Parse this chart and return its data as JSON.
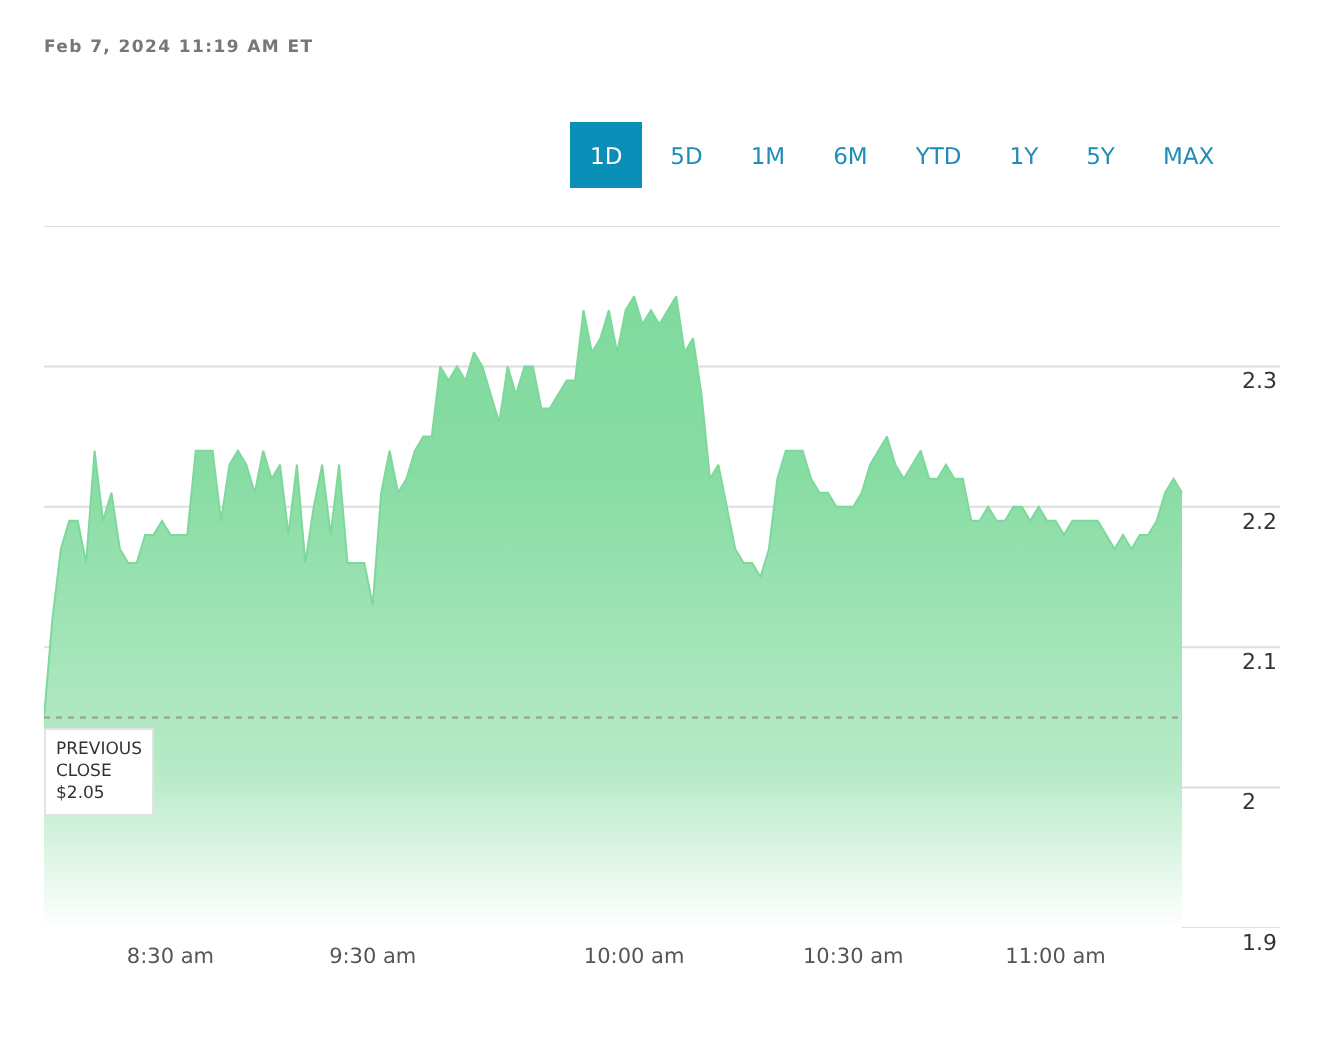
{
  "chart_data": {
    "type": "area",
    "title": "Feb 7, 2024 11:19 AM ET",
    "annotations": [
      "1D",
      "5D",
      "1M",
      "6M",
      "YTD",
      "1Y",
      "5Y",
      "MAX"
    ],
    "categories": [
      null,
      null,
      null,
      null,
      null,
      null,
      null,
      null,
      null,
      null,
      null,
      null,
      null,
      null,
      null,
      "8:30 am",
      null,
      null,
      null,
      null,
      null,
      null,
      null,
      null,
      null,
      null,
      null,
      null,
      null,
      null,
      null,
      null,
      null,
      null,
      null,
      null,
      null,
      null,
      null,
      "9:30 am",
      null,
      null,
      null,
      null,
      null,
      null,
      null,
      null,
      null,
      null,
      null,
      null,
      null,
      null,
      null,
      null,
      null,
      null,
      null,
      null,
      null,
      null,
      null,
      null,
      null,
      null,
      null,
      null,
      null,
      null,
      "10:00 am",
      null,
      null,
      null,
      null,
      null,
      null,
      null,
      null,
      null,
      null,
      null,
      null,
      null,
      null,
      null,
      null,
      null,
      null,
      null,
      null,
      null,
      null,
      null,
      null,
      null,
      "10:30 am",
      null,
      null,
      null,
      null,
      null,
      null,
      null,
      null,
      null,
      null,
      null,
      null,
      null,
      null,
      null,
      null,
      null,
      null,
      null,
      null,
      null,
      null,
      null,
      "11:00 am",
      null,
      null,
      null,
      null,
      null,
      null,
      null,
      null,
      null,
      null,
      null,
      null,
      null,
      null,
      null
    ],
    "series": [
      {
        "color": "#7dd99b",
        "values": [
          2.05,
          2.12,
          2.17,
          2.19,
          2.19,
          2.16,
          2.24,
          2.19,
          2.21,
          2.17,
          2.16,
          2.16,
          2.18,
          2.18,
          2.19,
          2.18,
          2.18,
          2.18,
          2.24,
          2.24,
          2.24,
          2.19,
          2.23,
          2.24,
          2.23,
          2.21,
          2.24,
          2.22,
          2.23,
          2.18,
          2.23,
          2.16,
          2.2,
          2.23,
          2.18,
          2.23,
          2.16,
          2.16,
          2.16,
          2.13,
          2.21,
          2.24,
          2.21,
          2.22,
          2.24,
          2.25,
          2.25,
          2.3,
          2.29,
          2.3,
          2.29,
          2.31,
          2.3,
          2.28,
          2.26,
          2.3,
          2.28,
          2.3,
          2.3,
          2.27,
          2.27,
          2.28,
          2.29,
          2.29,
          2.34,
          2.31,
          2.32,
          2.34,
          2.31,
          2.34,
          2.35,
          2.33,
          2.34,
          2.33,
          2.34,
          2.35,
          2.31,
          2.32,
          2.28,
          2.22,
          2.23,
          2.2,
          2.17,
          2.16,
          2.16,
          2.15,
          2.17,
          2.22,
          2.24,
          2.24,
          2.24,
          2.22,
          2.21,
          2.21,
          2.2,
          2.2,
          2.2,
          2.21,
          2.23,
          2.24,
          2.25,
          2.23,
          2.22,
          2.23,
          2.24,
          2.22,
          2.22,
          2.23,
          2.22,
          2.22,
          2.19,
          2.19,
          2.2,
          2.19,
          2.19,
          2.2,
          2.2,
          2.19,
          2.2,
          2.19,
          2.19,
          2.18,
          2.19,
          2.19,
          2.19,
          2.19,
          2.18,
          2.17,
          2.18,
          2.17,
          2.18,
          2.18,
          2.19,
          2.21,
          2.22,
          2.21
        ]
      }
    ],
    "ylim": [
      1.9,
      2.4
    ],
    "yticks": [
      1.9,
      2,
      2.1,
      2.2,
      2.3,
      {
        "value": 2.4,
        "label": null
      }
    ],
    "grid": "y",
    "ref_lines": [
      {
        "axis": "y",
        "value": 2.05,
        "label": "PREVIOUS CLOSE $2.05",
        "line_style": "dashed"
      }
    ]
  }
}
